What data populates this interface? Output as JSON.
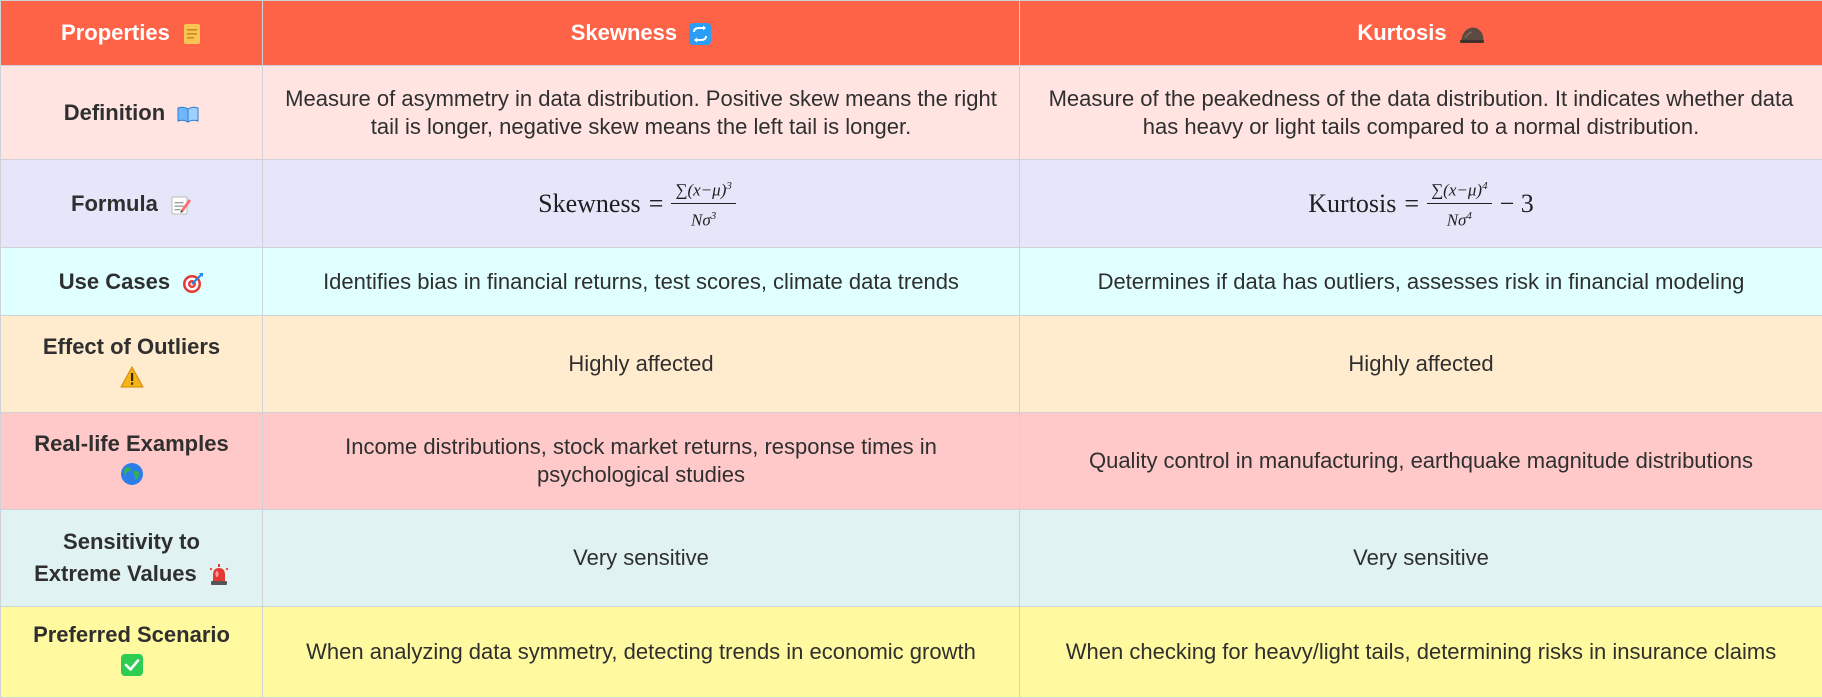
{
  "header": {
    "properties": "Properties",
    "skewness": "Skewness",
    "kurtosis": "Kurtosis"
  },
  "rows": [
    {
      "label": "Definition",
      "icon": "book-icon",
      "skewness": "Measure of asymmetry in data distribution. Positive skew means the right tail is longer, negative skew means the left tail is longer.",
      "kurtosis": "Measure of the peakedness of the data distribution. It indicates whether data has heavy or light tails compared to a normal distribution."
    },
    {
      "label": "Formula",
      "icon": "memo-icon",
      "skewness": {
        "name": "Skewness",
        "eq": "=",
        "numerator": "∑(x−μ)",
        "numerator_power": "3",
        "denominator": "Nσ",
        "denominator_power": "3",
        "suffix": ""
      },
      "kurtosis": {
        "name": "Kurtosis",
        "eq": "=",
        "numerator": "∑(x−μ)",
        "numerator_power": "4",
        "denominator": "Nσ",
        "denominator_power": "4",
        "suffix": "− 3"
      }
    },
    {
      "label": "Use Cases",
      "icon": "target-icon",
      "skewness": "Identifies bias in financial returns, test scores, climate data trends",
      "kurtosis": "Determines if data has outliers, assesses risk in financial modeling"
    },
    {
      "label": "Effect of Outliers",
      "icon": "warning-icon",
      "skewness": "Highly affected",
      "kurtosis": "Highly affected"
    },
    {
      "label": "Real-life Examples",
      "icon": "globe-icon",
      "skewness": "Income distributions, stock market returns, response times in psychological studies",
      "kurtosis": "Quality control in manufacturing, earthquake magnitude distributions"
    },
    {
      "label": "Sensitivity to Extreme Values",
      "icon": "siren-icon",
      "skewness": "Very sensitive",
      "kurtosis": "Very sensitive"
    },
    {
      "label": "Preferred Scenario",
      "icon": "check-box-icon",
      "skewness": "When analyzing data symmetry, detecting trends in economic growth",
      "kurtosis": "When checking for heavy/light tails, determining risks in insurance claims"
    }
  ],
  "header_icons": {
    "properties": "page-icon",
    "skewness": "repeat-arrows-icon",
    "kurtosis": "rock-icon"
  },
  "colors": {
    "header": "#ff6347",
    "definition": "#ffe4e1",
    "formula": "#e6e6fa",
    "use_cases": "#e0ffff",
    "outliers": "#ffebcd",
    "examples": "#ffc9c9",
    "sensitivity": "#e0f2f1",
    "preferred": "#fffaa0"
  }
}
